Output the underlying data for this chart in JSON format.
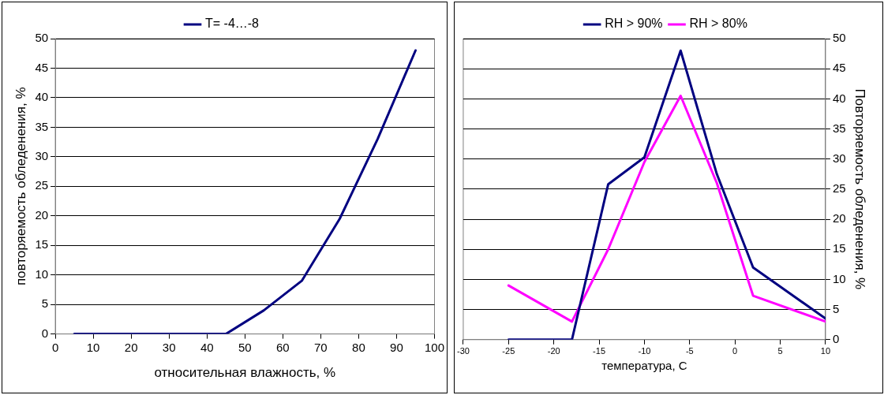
{
  "chart_data": [
    {
      "type": "line",
      "xlabel": "относительная влажность, %",
      "ylabel": "повторяемость обледенения, %",
      "x": [
        5,
        15,
        25,
        35,
        45,
        55,
        65,
        75,
        85,
        95
      ],
      "series": [
        {
          "name": "T= -4…-8",
          "color": "#000080",
          "values": [
            0,
            0,
            0,
            0,
            0,
            4,
            9,
            19.5,
            33,
            48
          ]
        }
      ],
      "xlim": [
        0,
        100
      ],
      "xticks": [
        0,
        10,
        20,
        30,
        40,
        50,
        60,
        70,
        80,
        90,
        100
      ],
      "ylim": [
        0,
        50
      ],
      "yticks": [
        0,
        5,
        10,
        15,
        20,
        25,
        30,
        35,
        40,
        45,
        50
      ],
      "grid": "y",
      "legend": "top",
      "marker": "none",
      "line_style": "solid"
    },
    {
      "type": "line",
      "xlabel": "температура, С",
      "y2label": "Повторяемость обледенения, %",
      "x": [
        -25,
        -18,
        -14,
        -10,
        -6,
        -2,
        2,
        10
      ],
      "series": [
        {
          "name": "RH > 90%",
          "color": "#000080",
          "axis": "y2",
          "values": [
            0,
            0,
            25.8,
            30.3,
            48,
            27.5,
            12,
            3.5
          ]
        },
        {
          "name": "RH > 80%",
          "color": "#ff00ff",
          "axis": "y2",
          "values": [
            9,
            3,
            15,
            29.5,
            40.5,
            26,
            7.3,
            3
          ]
        }
      ],
      "xlim": [
        -30,
        10
      ],
      "xticks": [
        -30,
        -25,
        -20,
        -15,
        -10,
        -5,
        0,
        5,
        10
      ],
      "y2lim": [
        0,
        50
      ],
      "y2ticks": [
        0,
        5,
        10,
        15,
        20,
        25,
        30,
        35,
        40,
        45,
        50
      ],
      "grid": "y",
      "legend": "top",
      "marker": "none",
      "line_style": "solid"
    }
  ]
}
